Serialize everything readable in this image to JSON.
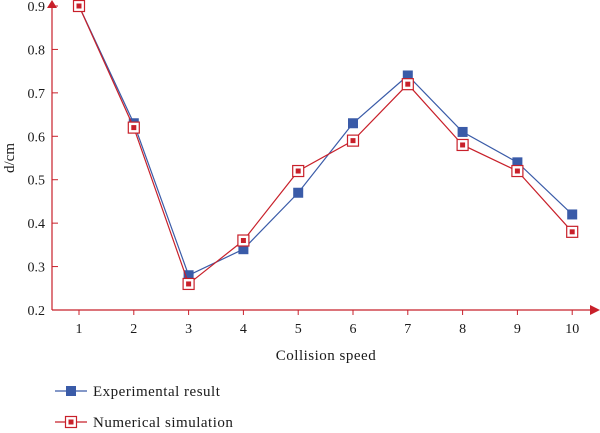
{
  "chart_data": {
    "type": "line",
    "xlabel": "Collision speed",
    "ylabel": "d/cm",
    "x": [
      1,
      2,
      3,
      4,
      5,
      6,
      7,
      8,
      9,
      10
    ],
    "ylim": [
      0.2,
      0.9
    ],
    "yticks": [
      "0.2",
      "0.3",
      "0.4",
      "0.5",
      "0.6",
      "0.7",
      "0.8",
      "0.9"
    ],
    "xticks": [
      "1",
      "2",
      "3",
      "4",
      "5",
      "6",
      "7",
      "8",
      "9",
      "10"
    ],
    "grid": false,
    "legend_position": "bottom-left",
    "series": [
      {
        "name": "Experimental result",
        "values": [
          0.9,
          0.63,
          0.28,
          0.34,
          0.47,
          0.63,
          0.74,
          0.61,
          0.54,
          0.42
        ],
        "color": "#3a5ba8",
        "marker": "filled-square"
      },
      {
        "name": "Numerical simulation",
        "values": [
          0.9,
          0.62,
          0.26,
          0.36,
          0.52,
          0.59,
          0.72,
          0.58,
          0.52,
          0.38
        ],
        "color": "#c8202a",
        "marker": "open-square-with-dot"
      }
    ]
  }
}
